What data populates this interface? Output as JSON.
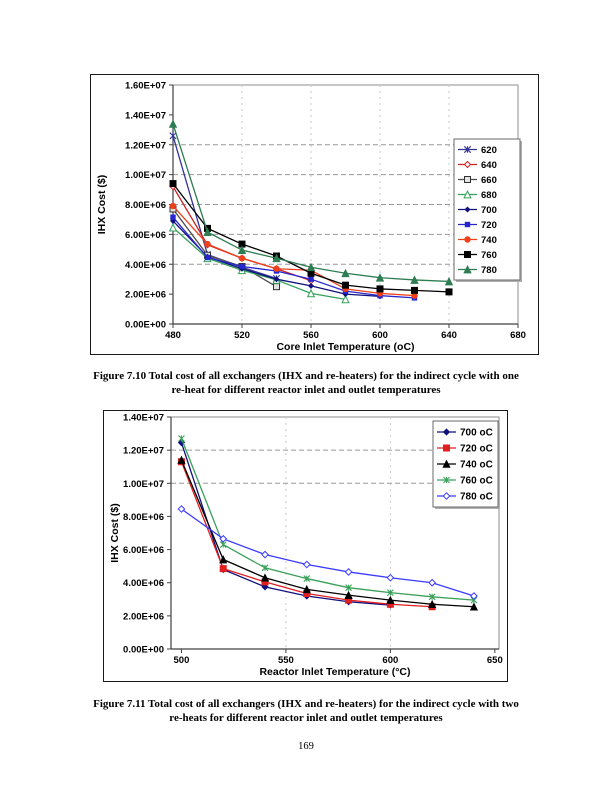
{
  "page_number": "169",
  "figures": {
    "fig710": {
      "caption_line1": "Figure 7.10 Total cost of all exchangers (IHX and re-heaters) for the indirect cycle with one",
      "caption_line2": "re-heat for different reactor inlet and outlet temperatures"
    },
    "fig711": {
      "caption_line1": "Figure 7.11 Total cost of all exchangers (IHX and re-heaters) for the indirect cycle with two",
      "caption_line2": "re-heats for different reactor inlet and outlet temperatures"
    }
  },
  "chart_data": [
    {
      "type": "line",
      "title": "",
      "xlabel": "Core Inlet Temperature (oC)",
      "ylabel": "IHX Cost ($)",
      "xlim": [
        480,
        680
      ],
      "ylim": [
        0,
        16000000
      ],
      "xticks": [
        480,
        520,
        560,
        600,
        640,
        680
      ],
      "yticks": [
        0,
        2000000,
        4000000,
        6000000,
        8000000,
        10000000,
        12000000,
        14000000,
        16000000
      ],
      "ytick_labels": [
        "0.00E+00",
        "2.00E+06",
        "4.00E+06",
        "6.00E+06",
        "8.00E+06",
        "1.00E+07",
        "1.20E+07",
        "1.40E+07",
        "1.60E+07"
      ],
      "grid_y": [
        4000000,
        6000000,
        8000000,
        10000000,
        12000000
      ],
      "grid_x": [
        520,
        560,
        600,
        640
      ],
      "grid_style": "dashed",
      "legend_position": "inside-right",
      "series": [
        {
          "name": "620",
          "color": "#333399",
          "marker": "xstar",
          "msize": 3.2,
          "x": [
            480,
            500,
            520,
            540
          ],
          "y": [
            12600000,
            4650000,
            3800000,
            3050000
          ]
        },
        {
          "name": "640",
          "color": "#cc2222",
          "marker": "open-diamond",
          "msize": 3,
          "x": [
            480,
            500,
            520,
            540,
            560
          ],
          "y": [
            9200000,
            5300000,
            4400000,
            3700000,
            2900000
          ]
        },
        {
          "name": "660",
          "color": "#4d4d4d",
          "marker": "open-square",
          "msize": 3,
          "x": [
            480,
            500,
            520,
            540
          ],
          "y": [
            7700000,
            4600000,
            3850000,
            2500000
          ]
        },
        {
          "name": "680",
          "color": "#35a059",
          "marker": "open-triangle",
          "msize": 3.4,
          "x": [
            480,
            500,
            520,
            540,
            560,
            580
          ],
          "y": [
            6450000,
            4400000,
            3600000,
            2950000,
            2050000,
            1650000
          ]
        },
        {
          "name": "700",
          "color": "#10107e",
          "marker": "filled-diamond",
          "msize": 2.3,
          "x": [
            480,
            500,
            520,
            540,
            560,
            580,
            600
          ],
          "y": [
            6900000,
            4500000,
            3700000,
            3000000,
            2550000,
            2000000,
            1850000
          ]
        },
        {
          "name": "720",
          "color": "#2727cf",
          "marker": "filled-square",
          "msize": 2.2,
          "x": [
            480,
            500,
            520,
            540,
            560,
            580,
            600,
            620
          ],
          "y": [
            7150000,
            4450000,
            3850000,
            3550000,
            3000000,
            2200000,
            1900000,
            1750000
          ]
        },
        {
          "name": "740",
          "color": "#f0401a",
          "marker": "filled-circle",
          "msize": 2.7,
          "x": [
            480,
            500,
            520,
            540,
            560,
            580,
            600,
            620
          ],
          "y": [
            7900000,
            5350000,
            4400000,
            3700000,
            3600000,
            2350000,
            2050000,
            1900000
          ]
        },
        {
          "name": "760",
          "color": "#000000",
          "marker": "filled-square",
          "msize": 3,
          "x": [
            480,
            500,
            520,
            540,
            560,
            580,
            600,
            620,
            640
          ],
          "y": [
            9400000,
            6400000,
            5350000,
            4550000,
            3400000,
            2600000,
            2350000,
            2250000,
            2150000
          ]
        },
        {
          "name": "780",
          "color": "#2e7d52",
          "marker": "filled-triangle",
          "msize": 3.4,
          "x": [
            480,
            500,
            520,
            540,
            560,
            580,
            600,
            620,
            640
          ],
          "y": [
            13400000,
            6150000,
            4950000,
            4400000,
            3800000,
            3400000,
            3100000,
            2950000,
            2850000
          ]
        }
      ]
    },
    {
      "type": "line",
      "title": "",
      "xlabel": "Reactor Inlet Temperature (°C)",
      "ylabel": "IHX Cost ($)",
      "xlim": [
        495,
        652
      ],
      "ylim": [
        0,
        14000000
      ],
      "xticks": [
        500,
        550,
        600,
        650
      ],
      "yticks": [
        0,
        2000000,
        4000000,
        6000000,
        8000000,
        10000000,
        12000000,
        14000000
      ],
      "ytick_labels": [
        "0.00E+00",
        "2.00E+06",
        "4.00E+06",
        "6.00E+06",
        "8.00E+06",
        "1.00E+07",
        "1.20E+07",
        "1.40E+07"
      ],
      "grid_y": [
        10000000,
        12000000
      ],
      "grid_x": [
        550,
        600
      ],
      "grid_style": "dashed",
      "legend_position": "inside-top-right",
      "series": [
        {
          "name": "700 oC",
          "color": "#10107e",
          "marker": "filled-diamond",
          "msize": 2.9,
          "x": [
            500,
            520,
            540,
            560,
            580,
            600
          ],
          "y": [
            12450000,
            4800000,
            3750000,
            3200000,
            2850000,
            2650000
          ]
        },
        {
          "name": "720 oC",
          "color": "#e01f1f",
          "marker": "filled-square",
          "msize": 3,
          "x": [
            500,
            520,
            540,
            560,
            580,
            600,
            620
          ],
          "y": [
            11300000,
            4850000,
            4050000,
            3350000,
            2950000,
            2700000,
            2550000
          ]
        },
        {
          "name": "740 oC",
          "color": "#000000",
          "marker": "filled-triangle",
          "msize": 3.3,
          "x": [
            500,
            520,
            540,
            560,
            580,
            600,
            620,
            640
          ],
          "y": [
            11400000,
            5400000,
            4300000,
            3600000,
            3250000,
            2950000,
            2700000,
            2550000
          ]
        },
        {
          "name": "760 oC",
          "color": "#3aa05a",
          "marker": "xstar",
          "msize": 3,
          "x": [
            500,
            520,
            540,
            560,
            580,
            600,
            620,
            640
          ],
          "y": [
            12700000,
            6300000,
            4900000,
            4250000,
            3700000,
            3400000,
            3150000,
            2950000
          ]
        },
        {
          "name": "780 oC",
          "color": "#3b3bff",
          "marker": "open-diamond",
          "msize": 3.2,
          "x": [
            500,
            520,
            540,
            560,
            580,
            600,
            620,
            640
          ],
          "y": [
            8450000,
            6650000,
            5700000,
            5100000,
            4650000,
            4300000,
            4000000,
            3200000
          ]
        }
      ]
    }
  ]
}
